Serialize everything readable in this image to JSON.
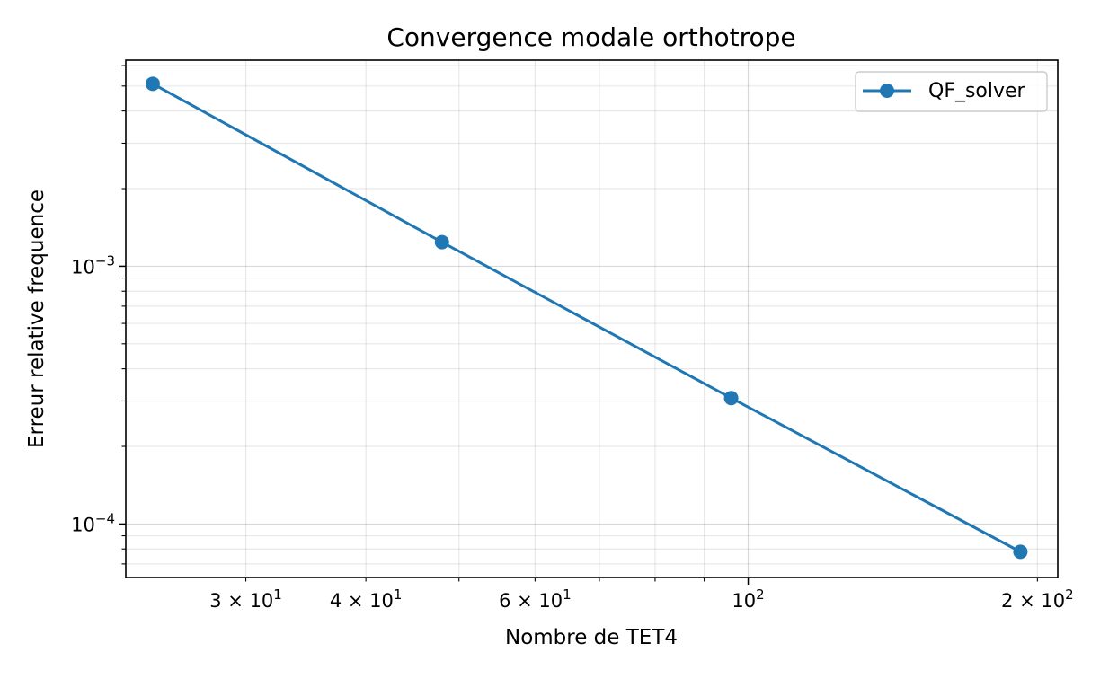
{
  "chart_data": {
    "type": "line",
    "title": "Convergence modale orthotrope",
    "xlabel": "Nombre de TET4",
    "ylabel": "Erreur relative frequence",
    "x_scale": "log",
    "y_scale": "log",
    "xlim": [
      22.5,
      210
    ],
    "ylim": [
      6.2e-05,
      0.0063
    ],
    "grid": true,
    "legend_position": "upper right",
    "x_ticks": [
      {
        "value": 30,
        "mantissa": "3",
        "exponent": "1"
      },
      {
        "value": 40,
        "mantissa": "4",
        "exponent": "1"
      },
      {
        "value": 60,
        "mantissa": "6",
        "exponent": "1"
      },
      {
        "value": 100,
        "mantissa": "",
        "exponent": "2"
      },
      {
        "value": 200,
        "mantissa": "2",
        "exponent": "2"
      }
    ],
    "y_ticks": [
      {
        "value": 0.001,
        "exponent": "−3"
      },
      {
        "value": 0.0001,
        "exponent": "−4"
      }
    ],
    "series": [
      {
        "name": "QF_solver",
        "color": "#1f77b4",
        "marker": "circle",
        "x": [
          24,
          48,
          96,
          192
        ],
        "y": [
          0.0051,
          0.00124,
          0.000308,
          7.8e-05
        ]
      }
    ]
  }
}
